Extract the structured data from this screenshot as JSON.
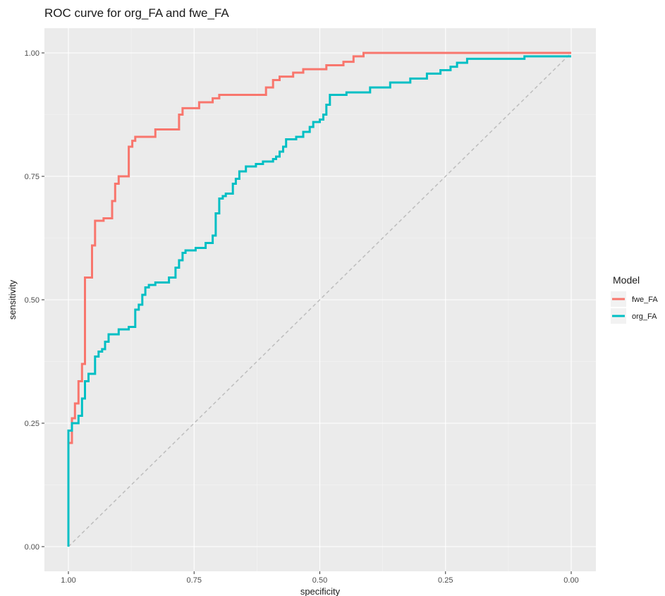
{
  "chart_data": {
    "type": "line",
    "title": "ROC curve for org_FA and fwe_FA",
    "xlabel": "specificity",
    "ylabel": "sensitivity",
    "x_reversed": true,
    "xlim": [
      1.0,
      0.0
    ],
    "ylim": [
      0.0,
      1.0
    ],
    "xticks": [
      "1.00",
      "0.75",
      "0.50",
      "0.25",
      "0.00"
    ],
    "yticks": [
      "0.00",
      "0.25",
      "0.50",
      "0.75",
      "1.00"
    ],
    "grid": true,
    "legend": {
      "title": "Model",
      "position": "right"
    },
    "reference_line": {
      "x": [
        1.0,
        0.0
      ],
      "y": [
        0.0,
        1.0
      ],
      "style": "dashed",
      "color": "#bdbdbd"
    },
    "series": [
      {
        "name": "fwe_FA",
        "color": "#f8766d",
        "points": [
          [
            1.0,
            0.0
          ],
          [
            1.0,
            0.21
          ],
          [
            0.993,
            0.21
          ],
          [
            0.993,
            0.26
          ],
          [
            0.987,
            0.26
          ],
          [
            0.987,
            0.29
          ],
          [
            0.98,
            0.29
          ],
          [
            0.98,
            0.335
          ],
          [
            0.973,
            0.335
          ],
          [
            0.973,
            0.37
          ],
          [
            0.967,
            0.37
          ],
          [
            0.967,
            0.545
          ],
          [
            0.953,
            0.545
          ],
          [
            0.953,
            0.61
          ],
          [
            0.947,
            0.61
          ],
          [
            0.947,
            0.66
          ],
          [
            0.93,
            0.66
          ],
          [
            0.93,
            0.665
          ],
          [
            0.913,
            0.665
          ],
          [
            0.913,
            0.7
          ],
          [
            0.907,
            0.7
          ],
          [
            0.907,
            0.735
          ],
          [
            0.9,
            0.735
          ],
          [
            0.9,
            0.75
          ],
          [
            0.88,
            0.75
          ],
          [
            0.88,
            0.81
          ],
          [
            0.873,
            0.81
          ],
          [
            0.873,
            0.822
          ],
          [
            0.867,
            0.822
          ],
          [
            0.867,
            0.83
          ],
          [
            0.827,
            0.83
          ],
          [
            0.827,
            0.845
          ],
          [
            0.78,
            0.845
          ],
          [
            0.78,
            0.875
          ],
          [
            0.773,
            0.875
          ],
          [
            0.773,
            0.888
          ],
          [
            0.74,
            0.888
          ],
          [
            0.74,
            0.9
          ],
          [
            0.713,
            0.9
          ],
          [
            0.713,
            0.908
          ],
          [
            0.7,
            0.908
          ],
          [
            0.7,
            0.915
          ],
          [
            0.607,
            0.915
          ],
          [
            0.607,
            0.93
          ],
          [
            0.593,
            0.93
          ],
          [
            0.593,
            0.945
          ],
          [
            0.58,
            0.945
          ],
          [
            0.58,
            0.952
          ],
          [
            0.553,
            0.952
          ],
          [
            0.553,
            0.96
          ],
          [
            0.533,
            0.96
          ],
          [
            0.533,
            0.967
          ],
          [
            0.487,
            0.967
          ],
          [
            0.487,
            0.975
          ],
          [
            0.453,
            0.975
          ],
          [
            0.453,
            0.982
          ],
          [
            0.433,
            0.982
          ],
          [
            0.433,
            0.993
          ],
          [
            0.413,
            0.993
          ],
          [
            0.413,
            1.0
          ],
          [
            0.0,
            1.0
          ]
        ]
      },
      {
        "name": "org_FA",
        "color": "#00bfc4",
        "points": [
          [
            1.0,
            0.0
          ],
          [
            1.0,
            0.235
          ],
          [
            0.993,
            0.235
          ],
          [
            0.993,
            0.25
          ],
          [
            0.98,
            0.25
          ],
          [
            0.98,
            0.265
          ],
          [
            0.973,
            0.265
          ],
          [
            0.973,
            0.3
          ],
          [
            0.967,
            0.3
          ],
          [
            0.967,
            0.335
          ],
          [
            0.96,
            0.335
          ],
          [
            0.96,
            0.35
          ],
          [
            0.947,
            0.35
          ],
          [
            0.947,
            0.385
          ],
          [
            0.94,
            0.385
          ],
          [
            0.94,
            0.395
          ],
          [
            0.933,
            0.395
          ],
          [
            0.933,
            0.4
          ],
          [
            0.927,
            0.4
          ],
          [
            0.927,
            0.415
          ],
          [
            0.92,
            0.415
          ],
          [
            0.92,
            0.43
          ],
          [
            0.9,
            0.43
          ],
          [
            0.9,
            0.44
          ],
          [
            0.88,
            0.44
          ],
          [
            0.88,
            0.445
          ],
          [
            0.867,
            0.445
          ],
          [
            0.867,
            0.48
          ],
          [
            0.86,
            0.48
          ],
          [
            0.86,
            0.49
          ],
          [
            0.853,
            0.49
          ],
          [
            0.853,
            0.51
          ],
          [
            0.847,
            0.51
          ],
          [
            0.847,
            0.525
          ],
          [
            0.84,
            0.525
          ],
          [
            0.84,
            0.53
          ],
          [
            0.827,
            0.53
          ],
          [
            0.827,
            0.535
          ],
          [
            0.8,
            0.535
          ],
          [
            0.8,
            0.545
          ],
          [
            0.787,
            0.545
          ],
          [
            0.787,
            0.565
          ],
          [
            0.78,
            0.565
          ],
          [
            0.78,
            0.58
          ],
          [
            0.773,
            0.58
          ],
          [
            0.773,
            0.595
          ],
          [
            0.767,
            0.595
          ],
          [
            0.767,
            0.6
          ],
          [
            0.747,
            0.6
          ],
          [
            0.747,
            0.605
          ],
          [
            0.727,
            0.605
          ],
          [
            0.727,
            0.615
          ],
          [
            0.713,
            0.615
          ],
          [
            0.713,
            0.63
          ],
          [
            0.707,
            0.63
          ],
          [
            0.707,
            0.675
          ],
          [
            0.7,
            0.675
          ],
          [
            0.7,
            0.705
          ],
          [
            0.693,
            0.705
          ],
          [
            0.693,
            0.71
          ],
          [
            0.687,
            0.71
          ],
          [
            0.687,
            0.715
          ],
          [
            0.673,
            0.715
          ],
          [
            0.673,
            0.735
          ],
          [
            0.667,
            0.735
          ],
          [
            0.667,
            0.745
          ],
          [
            0.66,
            0.745
          ],
          [
            0.66,
            0.76
          ],
          [
            0.647,
            0.76
          ],
          [
            0.647,
            0.77
          ],
          [
            0.627,
            0.77
          ],
          [
            0.627,
            0.775
          ],
          [
            0.613,
            0.775
          ],
          [
            0.613,
            0.78
          ],
          [
            0.593,
            0.78
          ],
          [
            0.593,
            0.785
          ],
          [
            0.587,
            0.785
          ],
          [
            0.587,
            0.79
          ],
          [
            0.58,
            0.79
          ],
          [
            0.58,
            0.8
          ],
          [
            0.573,
            0.8
          ],
          [
            0.573,
            0.81
          ],
          [
            0.567,
            0.81
          ],
          [
            0.567,
            0.825
          ],
          [
            0.547,
            0.825
          ],
          [
            0.547,
            0.83
          ],
          [
            0.533,
            0.83
          ],
          [
            0.533,
            0.84
          ],
          [
            0.52,
            0.84
          ],
          [
            0.52,
            0.85
          ],
          [
            0.513,
            0.85
          ],
          [
            0.513,
            0.86
          ],
          [
            0.5,
            0.86
          ],
          [
            0.5,
            0.865
          ],
          [
            0.493,
            0.865
          ],
          [
            0.493,
            0.875
          ],
          [
            0.487,
            0.875
          ],
          [
            0.487,
            0.895
          ],
          [
            0.48,
            0.895
          ],
          [
            0.48,
            0.915
          ],
          [
            0.447,
            0.915
          ],
          [
            0.447,
            0.92
          ],
          [
            0.4,
            0.92
          ],
          [
            0.4,
            0.93
          ],
          [
            0.36,
            0.93
          ],
          [
            0.36,
            0.94
          ],
          [
            0.32,
            0.94
          ],
          [
            0.32,
            0.948
          ],
          [
            0.287,
            0.948
          ],
          [
            0.287,
            0.958
          ],
          [
            0.26,
            0.958
          ],
          [
            0.26,
            0.965
          ],
          [
            0.24,
            0.965
          ],
          [
            0.24,
            0.972
          ],
          [
            0.227,
            0.972
          ],
          [
            0.227,
            0.98
          ],
          [
            0.207,
            0.98
          ],
          [
            0.207,
            0.988
          ],
          [
            0.093,
            0.988
          ],
          [
            0.093,
            0.993
          ],
          [
            0.0,
            0.993
          ]
        ]
      }
    ]
  }
}
